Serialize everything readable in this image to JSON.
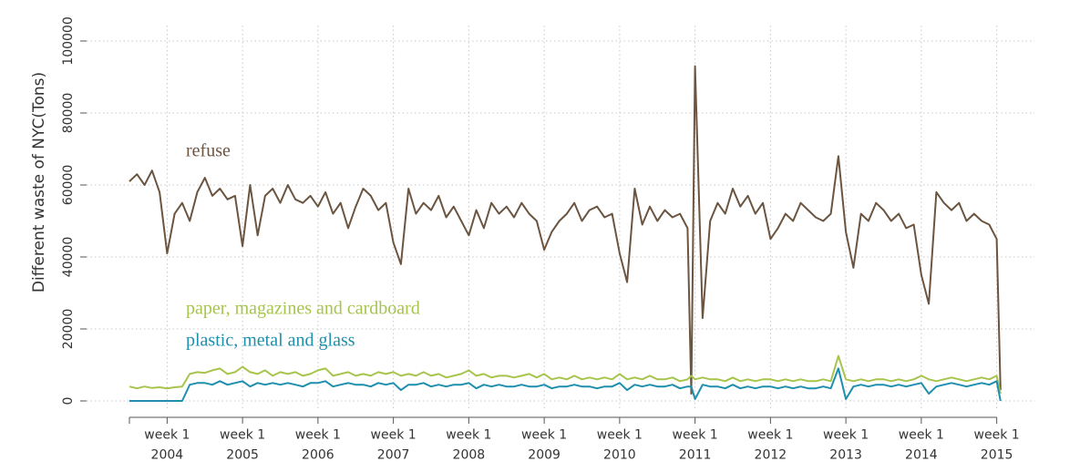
{
  "chart_data": {
    "type": "line",
    "y_label": "Different waste of NYC(Tons)",
    "x": [
      2003.5,
      2003.6,
      2003.7,
      2003.8,
      2003.9,
      2004.0,
      2004.1,
      2004.2,
      2004.3,
      2004.4,
      2004.5,
      2004.6,
      2004.7,
      2004.8,
      2004.9,
      2005.0,
      2005.1,
      2005.2,
      2005.3,
      2005.4,
      2005.5,
      2005.6,
      2005.7,
      2005.8,
      2005.9,
      2006.0,
      2006.1,
      2006.2,
      2006.3,
      2006.4,
      2006.5,
      2006.6,
      2006.7,
      2006.8,
      2006.9,
      2007.0,
      2007.1,
      2007.2,
      2007.3,
      2007.4,
      2007.5,
      2007.6,
      2007.7,
      2007.8,
      2007.9,
      2008.0,
      2008.1,
      2008.2,
      2008.3,
      2008.4,
      2008.5,
      2008.6,
      2008.7,
      2008.8,
      2008.9,
      2009.0,
      2009.1,
      2009.2,
      2009.3,
      2009.4,
      2009.5,
      2009.6,
      2009.7,
      2009.8,
      2009.9,
      2010.0,
      2010.1,
      2010.2,
      2010.3,
      2010.4,
      2010.5,
      2010.6,
      2010.7,
      2010.8,
      2010.9,
      2010.95,
      2011.0,
      2011.1,
      2011.2,
      2011.3,
      2011.4,
      2011.5,
      2011.6,
      2011.7,
      2011.8,
      2011.9,
      2012.0,
      2012.1,
      2012.2,
      2012.3,
      2012.4,
      2012.5,
      2012.6,
      2012.7,
      2012.8,
      2012.9,
      2013.0,
      2013.1,
      2013.2,
      2013.3,
      2013.4,
      2013.5,
      2013.6,
      2013.7,
      2013.8,
      2013.9,
      2014.0,
      2014.1,
      2014.2,
      2014.3,
      2014.4,
      2014.5,
      2014.6,
      2014.7,
      2014.8,
      2014.9,
      2015.0,
      2015.05
    ],
    "series": [
      {
        "name": "refuse",
        "color": "#6b5541",
        "values": [
          61000,
          63000,
          60000,
          64000,
          58000,
          41000,
          52000,
          55000,
          50000,
          58000,
          62000,
          57000,
          59000,
          56000,
          57000,
          43000,
          60000,
          46000,
          57000,
          59000,
          55000,
          60000,
          56000,
          55000,
          57000,
          54000,
          58000,
          52000,
          55000,
          48000,
          54000,
          59000,
          57000,
          53000,
          55000,
          44000,
          38000,
          59000,
          52000,
          55000,
          53000,
          57000,
          51000,
          54000,
          50000,
          46000,
          53000,
          48000,
          55000,
          52000,
          54000,
          51000,
          55000,
          52000,
          50000,
          42000,
          47000,
          50000,
          52000,
          55000,
          50000,
          53000,
          54000,
          51000,
          52000,
          41000,
          33000,
          59000,
          49000,
          54000,
          50000,
          53000,
          51000,
          52000,
          48000,
          2000,
          93000,
          23000,
          50000,
          55000,
          52000,
          59000,
          54000,
          57000,
          52000,
          55000,
          45000,
          48000,
          52000,
          50000,
          55000,
          53000,
          51000,
          50000,
          52000,
          68000,
          47000,
          37000,
          52000,
          50000,
          55000,
          53000,
          50000,
          52000,
          48000,
          49000,
          35000,
          27000,
          58000,
          55000,
          53000,
          55000,
          50000,
          52000,
          50000,
          49000,
          45000,
          3000
        ]
      },
      {
        "name": "paper, magazines and cardboard",
        "color": "#a7c44c",
        "values": [
          4000,
          3500,
          4000,
          3600,
          3800,
          3500,
          3800,
          4000,
          7500,
          8000,
          7800,
          8500,
          9000,
          7500,
          8000,
          9500,
          8000,
          7500,
          8500,
          7000,
          8000,
          7500,
          8000,
          7000,
          7500,
          8500,
          9000,
          7000,
          7500,
          8000,
          7000,
          7500,
          7000,
          8000,
          7500,
          8000,
          7000,
          7500,
          7000,
          8000,
          7000,
          7500,
          6500,
          7000,
          7500,
          8500,
          7000,
          7500,
          6500,
          7000,
          7000,
          6500,
          7000,
          7500,
          6500,
          7500,
          6000,
          6500,
          6000,
          7000,
          6000,
          6500,
          6000,
          6500,
          6000,
          7500,
          6000,
          6500,
          6000,
          7000,
          6000,
          6000,
          6500,
          5500,
          6000,
          7000,
          6000,
          6500,
          6000,
          6000,
          5500,
          6500,
          5500,
          6000,
          5500,
          6000,
          6000,
          5500,
          6000,
          5500,
          6000,
          5500,
          5500,
          6000,
          5500,
          12500,
          6000,
          5500,
          6000,
          5500,
          6000,
          6000,
          5500,
          6000,
          5500,
          6000,
          7000,
          6000,
          5500,
          6000,
          6500,
          6000,
          5500,
          6000,
          6500,
          6000,
          7000,
          2000
        ]
      },
      {
        "name": "plastic, metal and glass",
        "color": "#1f8fae",
        "values": [
          0,
          0,
          0,
          0,
          0,
          0,
          0,
          0,
          4500,
          5000,
          5000,
          4500,
          5500,
          4500,
          5000,
          5500,
          4000,
          5000,
          4500,
          5000,
          4500,
          5000,
          4500,
          4000,
          5000,
          5000,
          5500,
          4000,
          4500,
          5000,
          4500,
          4500,
          4000,
          5000,
          4500,
          5000,
          3000,
          4500,
          4500,
          5000,
          4000,
          4500,
          4000,
          4500,
          4500,
          5000,
          3500,
          4500,
          4000,
          4500,
          4000,
          4000,
          4500,
          4000,
          4000,
          4500,
          3500,
          4000,
          4000,
          4500,
          4000,
          4000,
          3500,
          4000,
          4000,
          5000,
          3000,
          4500,
          4000,
          4500,
          4000,
          4000,
          4500,
          3500,
          4000,
          4000,
          500,
          4500,
          4000,
          4000,
          3500,
          4500,
          3500,
          4000,
          3500,
          4000,
          4000,
          3500,
          4000,
          3500,
          4000,
          3500,
          3500,
          4000,
          3500,
          9000,
          500,
          4000,
          4500,
          4000,
          4500,
          4500,
          4000,
          4500,
          4000,
          4500,
          5000,
          2000,
          4000,
          4500,
          5000,
          4500,
          4000,
          4500,
          5000,
          4500,
          5500,
          0
        ]
      }
    ],
    "xlim": [
      2003.5,
      2015.5
    ],
    "xticks": [
      {
        "value": 2004,
        "label": "week 1 2004"
      },
      {
        "value": 2005,
        "label": "week 1 2005"
      },
      {
        "value": 2006,
        "label": "week 1 2006"
      },
      {
        "value": 2007,
        "label": "week 1 2007"
      },
      {
        "value": 2008,
        "label": "week 1 2008"
      },
      {
        "value": 2009,
        "label": "week 1 2009"
      },
      {
        "value": 2010,
        "label": "week 1 2010"
      },
      {
        "value": 2011,
        "label": "week 1 2011"
      },
      {
        "value": 2012,
        "label": "week 1 2012"
      },
      {
        "value": 2013,
        "label": "week 1 2013"
      },
      {
        "value": 2014,
        "label": "week 1 2014"
      },
      {
        "value": 2015,
        "label": "week 1 2015"
      }
    ],
    "ylim": [
      0,
      100000
    ],
    "yticks": [
      0,
      20000,
      40000,
      60000,
      80000,
      100000
    ],
    "grid": true
  }
}
